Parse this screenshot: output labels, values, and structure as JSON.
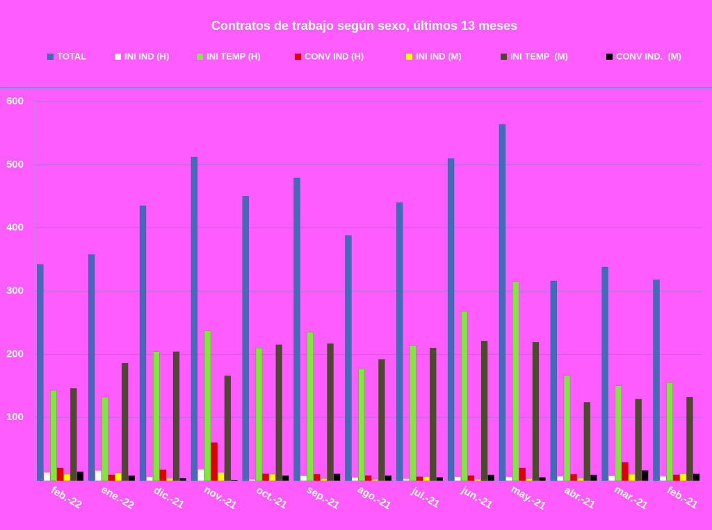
{
  "chart_data": {
    "type": "bar",
    "title": "Contratos de trabajo según sexo, últimos 13 meses",
    "categories": [
      "feb.-22",
      "ene.-22",
      "dic.-21",
      "nov.-21",
      "oct.-21",
      "sep.-21",
      "ago.-21",
      "jul.-21",
      "jun.-21",
      "may.-21",
      "abr.-21",
      "mar.-21",
      "feb.-21"
    ],
    "series": [
      {
        "name": "TOTAL",
        "color": "#3f6db8",
        "values": [
          342,
          358,
          435,
          512,
          450,
          479,
          388,
          440,
          510,
          564,
          316,
          338,
          318
        ]
      },
      {
        "name": "INI IND (H)",
        "color": "#ffffff",
        "values": [
          13,
          16,
          6,
          18,
          2,
          8,
          5,
          3,
          6,
          6,
          7,
          8,
          7
        ]
      },
      {
        "name": "INI TEMP (H)",
        "color": "#7fe83c",
        "values": [
          143,
          132,
          204,
          237,
          210,
          235,
          177,
          214,
          268,
          315,
          166,
          150,
          155
        ]
      },
      {
        "name": "CONV IND (H)",
        "color": "#e00000",
        "values": [
          20,
          9,
          17,
          60,
          11,
          10,
          8,
          6,
          8,
          20,
          10,
          29,
          9
        ]
      },
      {
        "name": "INI IND (M)",
        "color": "#ffff00",
        "values": [
          10,
          12,
          4,
          13,
          10,
          3,
          2,
          6,
          2,
          3,
          4,
          10,
          11
        ]
      },
      {
        "name": "INI TEMP  (M)",
        "color": "#4b4a2c",
        "values": [
          146,
          186,
          204,
          166,
          215,
          217,
          192,
          210,
          221,
          219,
          124,
          129,
          132
        ]
      },
      {
        "name": "CONV IND.  (M)",
        "color": "#000000",
        "values": [
          14,
          8,
          4,
          1,
          8,
          11,
          8,
          5,
          9,
          5,
          9,
          16,
          11
        ]
      }
    ],
    "ylim": [
      0,
      600
    ],
    "yticks": [
      100,
      200,
      300,
      400,
      500,
      600
    ],
    "grid": true
  }
}
